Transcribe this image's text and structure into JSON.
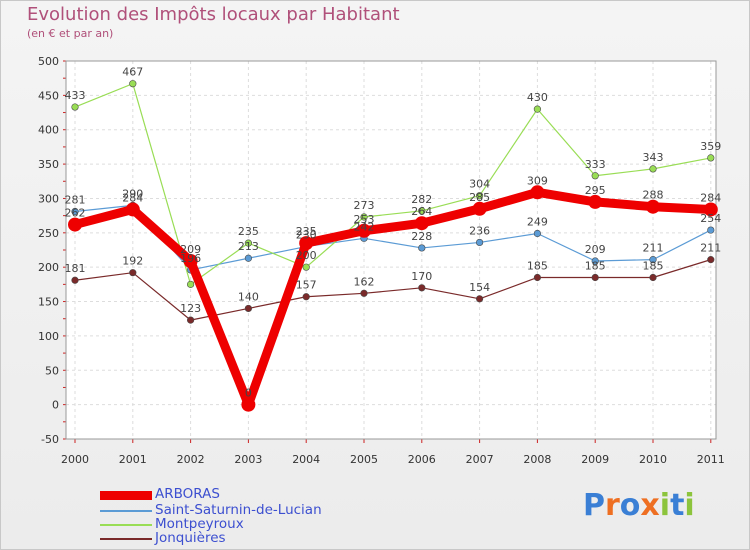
{
  "title": "Evolution des Impôts locaux par Habitant",
  "subtitle": "(en € et par an)",
  "logo": {
    "text": "Proxiti",
    "letter_colors": [
      "#3a7fd5",
      "#ee6f22",
      "#3a7fd5",
      "#ee6f22",
      "#8cc43c",
      "#3a7fd5",
      "#8cc43c"
    ]
  },
  "chart_data": {
    "type": "line",
    "title": "Evolution des Impôts locaux par Habitant",
    "subtitle": "(en € et par an)",
    "x": [
      "2000",
      "2001",
      "2002",
      "2003",
      "2004",
      "2005",
      "2006",
      "2007",
      "2008",
      "2009",
      "2010",
      "2011"
    ],
    "ylim": [
      -50,
      500
    ],
    "yticks": [
      "-50",
      "0",
      "50",
      "100",
      "150",
      "200",
      "250",
      "300",
      "350",
      "400",
      "450",
      "500"
    ],
    "grid": true,
    "legend_position": "bottom-left",
    "series": [
      {
        "name": "ARBORAS",
        "color": "#ee0000",
        "width": 9,
        "marker": 7,
        "values": [
          262,
          284,
          209,
          0,
          235,
          253,
          264,
          285,
          309,
          295,
          288,
          284
        ],
        "labels": [
          "262",
          "284",
          "209",
          "0",
          "235",
          "253",
          "264",
          "285",
          "309",
          "295",
          "288",
          "284"
        ]
      },
      {
        "name": "Saint-Saturnin-de-Lucian",
        "color": "#5b9bd5",
        "width": 1.2,
        "marker": 3.3,
        "values": [
          281,
          290,
          196,
          213,
          230,
          242,
          228,
          236,
          249,
          209,
          211,
          254
        ],
        "labels": [
          "281",
          "290",
          "196",
          "213",
          "230",
          "242",
          "228",
          "236",
          "249",
          "209",
          "211",
          "254"
        ]
      },
      {
        "name": "Montpeyroux",
        "color": "#99dd55",
        "width": 1.2,
        "marker": 3.3,
        "values": [
          433,
          467,
          175,
          235,
          200,
          273,
          282,
          304,
          430,
          333,
          343,
          359
        ],
        "labels": [
          "433",
          "467",
          "",
          "235",
          "200",
          "273",
          "282",
          "304",
          "430",
          "333",
          "343",
          "359"
        ]
      },
      {
        "name": "Jonquières",
        "color": "#7a2a2a",
        "width": 1.2,
        "marker": 3.3,
        "values": [
          181,
          192,
          123,
          140,
          157,
          162,
          170,
          154,
          185,
          185,
          185,
          211
        ],
        "labels": [
          "181",
          "192",
          "123",
          "140",
          "157",
          "162",
          "170",
          "154",
          "185",
          "185",
          "185",
          "211"
        ]
      }
    ]
  }
}
